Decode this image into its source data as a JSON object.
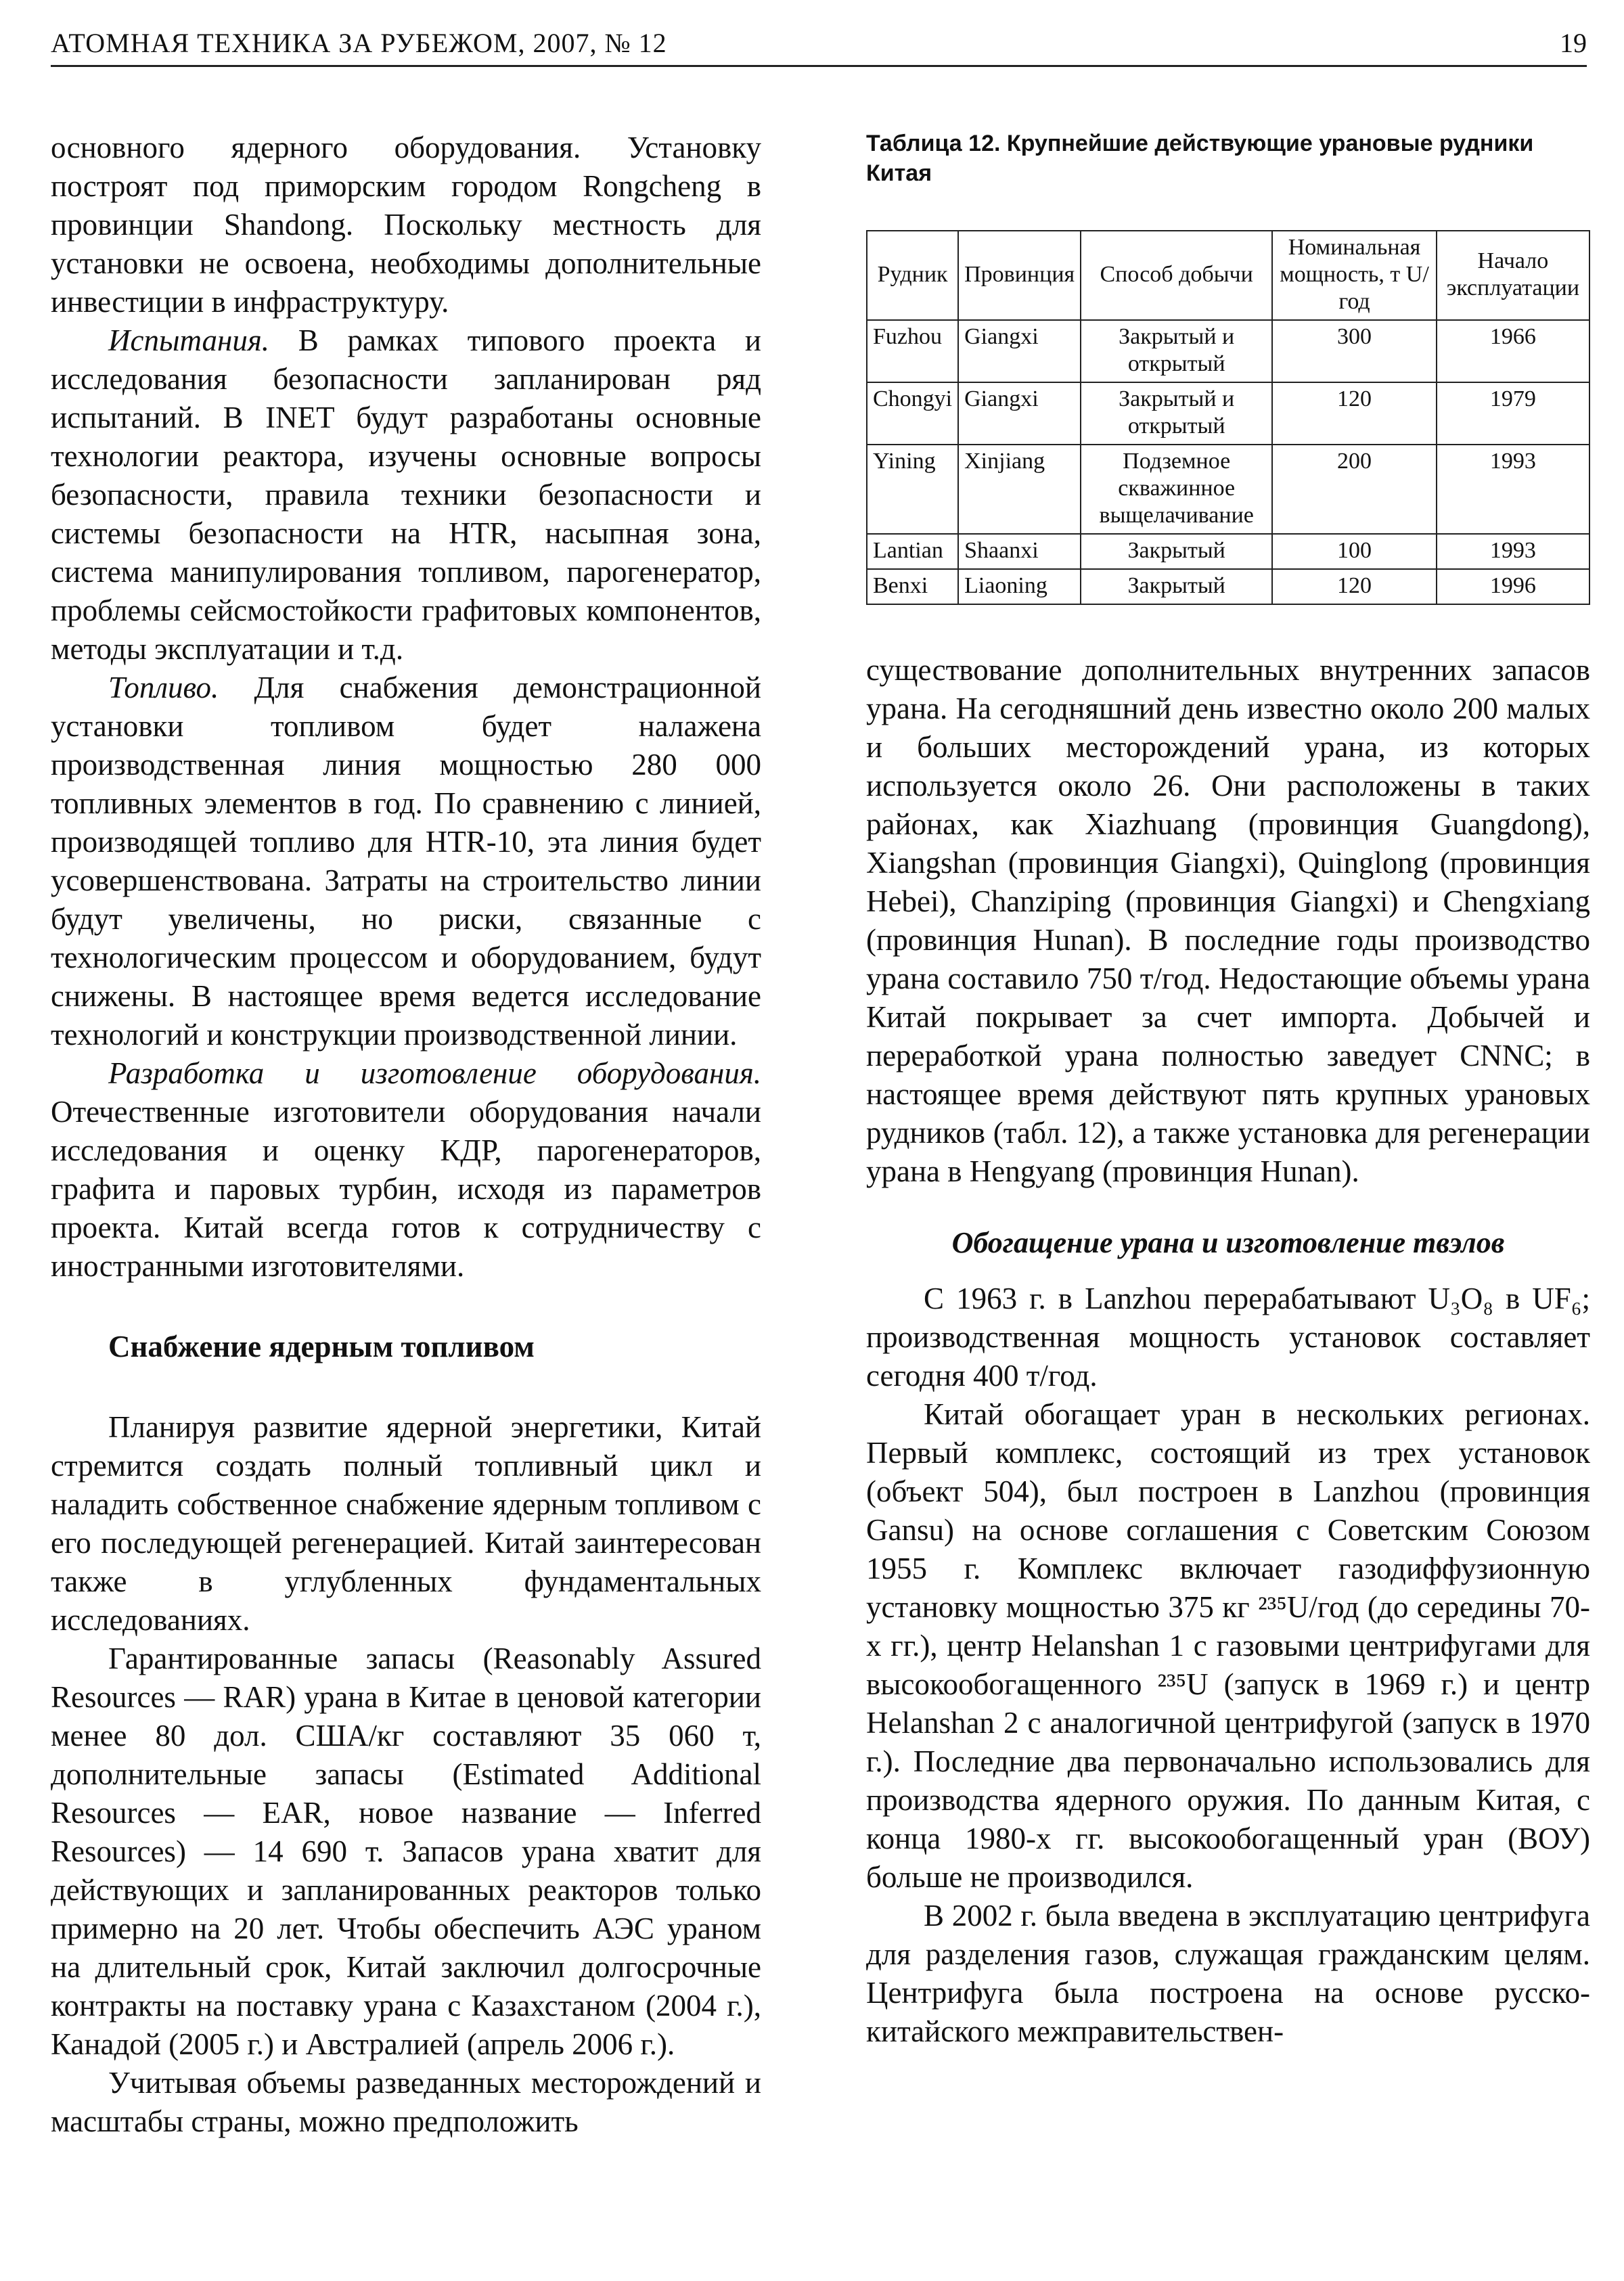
{
  "header": {
    "title": "АТОМНАЯ ТЕХНИКА ЗА РУБЕЖОМ, 2007, № 12",
    "page": "19"
  },
  "left_column": {
    "paragraphs_top": [
      {
        "text": "основного ядерного оборудования. Установку построят под приморским городом Rongcheng в провинции Shandong. Поскольку местность для установки не освоена, необходимы дополнительные инвестиции в инфраструктуру."
      },
      {
        "lead": "Испытания.",
        "text": "В рамках типового проекта и исследования безопасности запланирован ряд испытаний. В INET будут разработаны основные технологии реактора, изучены основные вопросы безопасности, правила техники безопасности и системы безопасности на HTR, насыпная зона, система манипулирования топливом, парогенератор, проблемы сейсмостойкости графитовых компонентов, методы эксплуатации и т.д."
      },
      {
        "lead": "Топливо.",
        "text": "Для снабжения демонстрационной установки топливом будет налажена производственная линия мощностью 280 000 топливных элементов в год. По сравнению с линией, производящей топливо для HTR-10, эта линия будет усовершенствована. Затраты на строительство линии будут увеличены, но риски, связанные с технологическим процессом и оборудованием, будут снижены. В настоящее время ведется исследование технологий и конструкции производственной линии."
      },
      {
        "lead": "Разработка и изготовление оборудования.",
        "text": "Отечественные изготовители оборудования начали исследования и оценку КДР, парогенераторов, графита и паровых турбин, исходя из параметров проекта. Китай всегда готов к сотрудничеству с иностранными изготовителями."
      }
    ],
    "heading": "Снабжение ядерным топливом",
    "paragraphs_bottom": [
      {
        "text": "Планируя развитие ядерной энергетики, Китай стремится создать полный топливный цикл и наладить собственное снабжение ядерным топливом с его последующей регенерацией. Китай заинтересован также в углубленных фундаментальных исследованиях."
      },
      {
        "text": "Гарантированные запасы (Reasonably Assured Resources — RAR) урана в Китае в ценовой категории менее 80 дол. США/кг составляют 35 060 т, дополнительные запасы (Estimated Additional Resources — EAR, новое название — Inferred Resources) — 14 690 т. Запасов урана хватит для действующих и запланированных реакторов только примерно на 20 лет. Чтобы обеспечить АЭС ураном на длительный срок, Китай заключил долгосрочные контракты на поставку урана с Казахстаном (2004 г.), Канадой (2005 г.) и Австралией (апрель 2006 г.)."
      },
      {
        "text": "Учитывая объемы разведанных месторождений и масштабы страны, можно предположить"
      }
    ]
  },
  "right_column": {
    "table": {
      "caption": "Таблица 12. Крупнейшие действующие урановые рудники Китая",
      "columns": [
        "Рудник",
        "Провинция",
        "Способ добычи",
        "Номинальная мощность, т U/год",
        "Начало эксплуатации"
      ],
      "rows": [
        [
          "Fuzhou",
          "Giangxi",
          "Закрытый и открытый",
          300,
          1966
        ],
        [
          "Chongyi",
          "Giangxi",
          "Закрытый и открытый",
          120,
          1979
        ],
        [
          "Yining",
          "Xinjiang",
          "Подземное скважинное выщелачивание",
          200,
          1993
        ],
        [
          "Lantian",
          "Shaanxi",
          "Закрытый",
          100,
          1993
        ],
        [
          "Benxi",
          "Liaoning",
          "Закрытый",
          120,
          1996
        ]
      ]
    },
    "paragraphs_top": [
      {
        "text": "существование дополнительных внутренних запасов урана. На сегодняшний день известно около 200 малых и больших месторождений урана, из которых используется около 26. Они расположены в таких районах, как Xiazhuang (провинция Guangdong), Xiangshan (провинция Giangxi), Quinglong (провинция Hebei), Chanziping (провинция Giangxi) и Chengxiang (провинция Hunan). В последние годы производство урана составило 750 т/год. Недостающие объемы урана Китай покрывает за счет импорта. Добычей и переработкой урана полностью заведует CNNC; в настоящее время действуют пять крупных урановых рудников (табл. 12), а также установка для регенерации урана в Hengyang (провинция Hunan)."
      }
    ],
    "heading": "Обогащение урана и изготовление твэлов",
    "paragraphs_bottom": [
      {
        "text": "С 1963 г. в Lanzhou перерабатывают U₃O₈ в UF₆; производственная мощность установок составляет сегодня 400 т/год."
      },
      {
        "text": "Китай обогащает уран в нескольких регионах. Первый комплекс, состоящий из трех установок (объект 504), был построен в Lanzhou (провинция Gansu) на основе соглашения с Советским Союзом 1955 г. Комплекс включает газодиффузионную установку мощностью 375 кг ²³⁵U/год (до середины 70-х гг.), центр Helanshan 1 с газовыми центрифугами для высокообогащенного ²³⁵U (запуск в 1969 г.) и центр Helanshan 2 с аналогичной центрифугой (запуск в 1970 г.). Последние два первоначально использовались для производства ядерного оружия. По данным Китая, с конца 1980-х гг. высокообогащенный уран (ВОУ) больше не производился."
      },
      {
        "text": "В 2002 г. была введена в эксплуатацию центрифуга для разделения газов, служащая гражданским целям. Центрифуга была построена на основе русско-китайского межправительствен-"
      }
    ]
  }
}
